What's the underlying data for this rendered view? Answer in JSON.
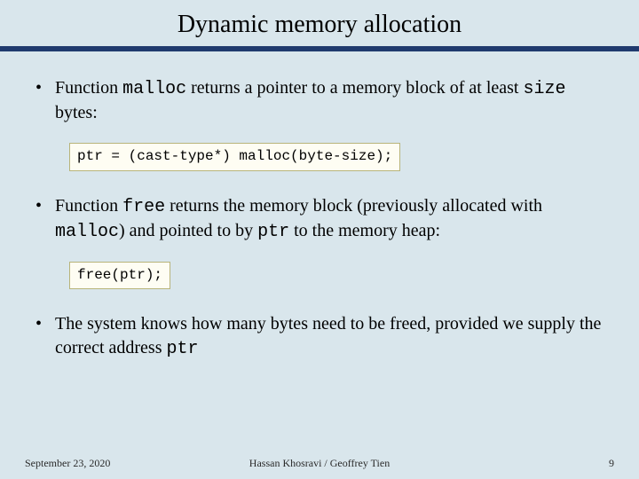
{
  "title": "Dynamic memory allocation",
  "bullets": [
    {
      "pre": "Function ",
      "code1": "malloc",
      "mid1": " returns a pointer to a memory block of at least ",
      "code2": "size",
      "post": " bytes:"
    },
    {
      "pre": "Function ",
      "code1": "free",
      "mid1": " returns the memory block (previously allocated with ",
      "code2": "malloc",
      "mid2": ") and pointed to by ",
      "code3": "ptr",
      "post": " to the memory heap:"
    },
    {
      "pre": "The system knows how many bytes need to be freed, provided we supply the correct address ",
      "code1": "ptr",
      "post": ""
    }
  ],
  "codeboxes": [
    "ptr = (cast-type*) malloc(byte-size);",
    "free(ptr);"
  ],
  "footer": {
    "date": "September 23, 2020",
    "authors": "Hassan Khosravi / Geoffrey Tien",
    "page": "9"
  },
  "colors": {
    "background": "#d9e6ec",
    "rule": "#1f3a6e",
    "codebox_bg": "#fefdf3",
    "codebox_border": "#b8b47a"
  }
}
